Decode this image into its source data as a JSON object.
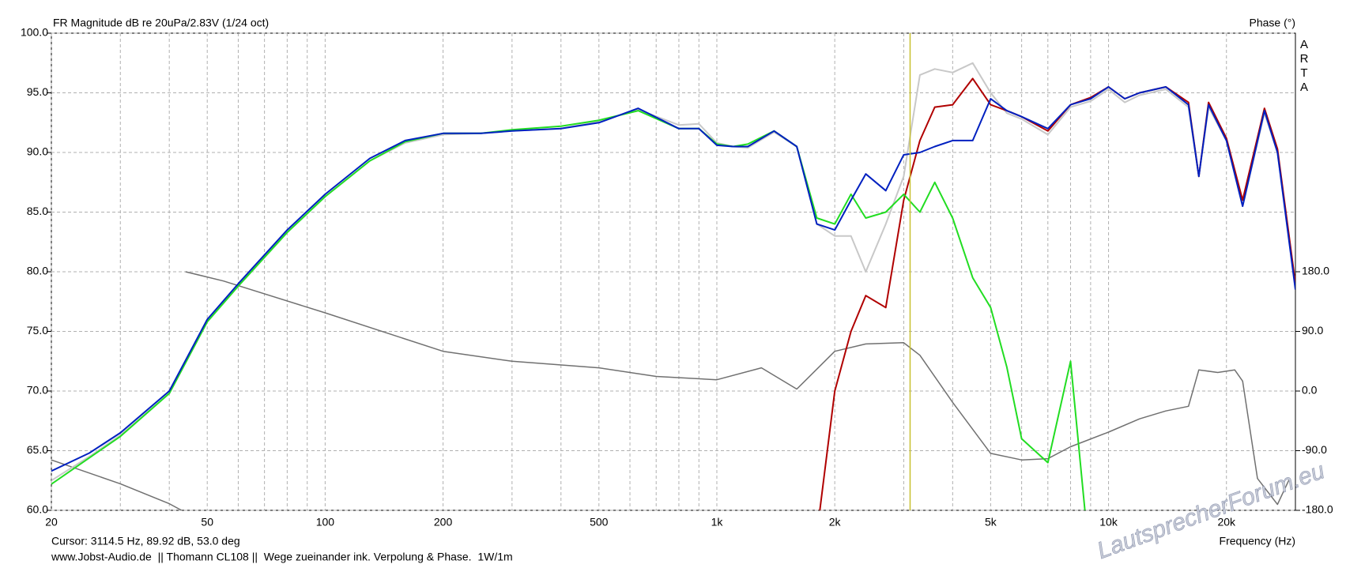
{
  "chart_data": {
    "type": "line",
    "title": "FR Magnitude dB re 20uPa/2.83V (1/24 oct)",
    "y2_label": "Phase (°)",
    "brand": "ARTA",
    "x_label": "Frequency (Hz)",
    "cursor": {
      "text": "Cursor: 3114.5 Hz, 89.92 dB, 53.0 deg",
      "x": 3114.5,
      "color": "#c8c030"
    },
    "footer": "www.Jobst-Audio.de  || Thomann CL108 ||  Wege zueinander ink. Verpolung & Phase.  1W/1m",
    "watermark": "LautsprecherForum.eu",
    "log_x": true,
    "grid": true,
    "xlim": [
      20,
      30000
    ],
    "xticks": [
      20,
      50,
      100,
      200,
      500,
      {
        "value": 1000,
        "label": "1k"
      },
      {
        "value": 2000,
        "label": "2k"
      },
      {
        "value": 5000,
        "label": "5k"
      },
      {
        "value": 10000,
        "label": "10k"
      },
      {
        "value": 20000,
        "label": "20k"
      }
    ],
    "x_minor_ticks": [
      30,
      40,
      60,
      70,
      80,
      90,
      300,
      400,
      600,
      700,
      800,
      900,
      3000,
      4000,
      6000,
      7000,
      8000,
      9000
    ],
    "ylim": [
      60,
      100
    ],
    "yticks": [
      {
        "value": 60,
        "label": "60.0"
      },
      {
        "value": 65,
        "label": "65.0"
      },
      {
        "value": 70,
        "label": "70.0"
      },
      {
        "value": 75,
        "label": "75.0"
      },
      {
        "value": 80,
        "label": "80.0"
      },
      {
        "value": 85,
        "label": "85.0"
      },
      {
        "value": 90,
        "label": "90.0"
      },
      {
        "value": 95,
        "label": "95.0"
      },
      {
        "value": 100,
        "label": "100.0"
      }
    ],
    "y2lim": [
      -180,
      540
    ],
    "y2ticks": [
      {
        "value": -180,
        "label": "-180.0"
      },
      {
        "value": -90,
        "label": "-90.0"
      },
      {
        "value": 0,
        "label": "0.0"
      },
      {
        "value": 90,
        "label": "90.0"
      },
      {
        "value": 180,
        "label": "180.0"
      }
    ],
    "x": [
      20,
      25,
      30,
      40,
      50,
      60,
      80,
      100,
      130,
      160,
      200,
      250,
      300,
      400,
      500,
      630,
      800,
      900,
      1000,
      1100,
      1200,
      1400,
      1600,
      1800,
      2000,
      2200,
      2400,
      2700,
      3000,
      3300,
      3600,
      4000,
      4500,
      5000,
      5500,
      6000,
      7000,
      8000,
      9000,
      10000,
      11000,
      12000,
      14000,
      16000,
      17000,
      18000,
      20000,
      22000,
      25000,
      27000,
      30000
    ],
    "series": [
      {
        "color": "#c8c8c8",
        "values": [
          62.5,
          64.5,
          66.3,
          69.8,
          75.8,
          78.8,
          83.3,
          86.3,
          89.3,
          90.8,
          91.5,
          91.6,
          91.8,
          92,
          92.6,
          93.6,
          92.3,
          92.4,
          90.8,
          90.5,
          90.4,
          91.7,
          90.5,
          84,
          83,
          83,
          80,
          84,
          88,
          96.5,
          97,
          96.7,
          97.5,
          95,
          93.3,
          92.8,
          91.5,
          93.8,
          94.3,
          95.3,
          94.2,
          94.8,
          95.3,
          93.8,
          88,
          93.8,
          91,
          85.5,
          93.3,
          90,
          79
        ]
      },
      {
        "color": "#b00000",
        "values": [
          null,
          null,
          null,
          null,
          null,
          null,
          null,
          null,
          null,
          null,
          null,
          null,
          null,
          null,
          null,
          null,
          null,
          null,
          null,
          null,
          null,
          null,
          null,
          58,
          70,
          75,
          78,
          77,
          86,
          91,
          93.8,
          94,
          96.2,
          94,
          93.5,
          93,
          91.8,
          94,
          94.6,
          95.5,
          94.5,
          95,
          95.5,
          94.2,
          88,
          94.2,
          91.2,
          86,
          93.7,
          90.3,
          79
        ]
      },
      {
        "color": "#22dd22",
        "values": [
          62.2,
          64.4,
          66.2,
          69.8,
          75.8,
          78.8,
          83.3,
          86.3,
          89.3,
          90.9,
          91.6,
          91.6,
          91.9,
          92.2,
          92.7,
          93.5,
          92,
          92,
          90.7,
          90.5,
          90.7,
          91.8,
          90.5,
          84.5,
          84,
          86.5,
          84.5,
          85,
          86.5,
          85,
          87.5,
          84.5,
          79.5,
          77,
          72,
          66,
          64,
          72.5,
          55,
          null,
          null,
          null,
          null,
          null,
          null,
          null,
          null,
          null,
          null,
          null,
          null
        ]
      },
      {
        "color": "#0020c0",
        "values": [
          63.3,
          64.8,
          66.5,
          70,
          76,
          79,
          83.5,
          86.5,
          89.5,
          91,
          91.6,
          91.6,
          91.8,
          92,
          92.5,
          93.7,
          92,
          92,
          90.6,
          90.5,
          90.5,
          91.8,
          90.5,
          84,
          83.5,
          86,
          88.2,
          86.8,
          89.8,
          90,
          90.5,
          91,
          91,
          94.5,
          93.5,
          93,
          92,
          94,
          94.5,
          95.5,
          94.5,
          95,
          95.5,
          94,
          88,
          94,
          91,
          85.5,
          93.5,
          90,
          78.5
        ]
      },
      {
        "color": "#707070",
        "axis": "y2",
        "x": [
          20,
          30,
          40,
          43,
          44,
          44,
          55,
          100,
          200,
          300,
          500,
          700,
          1000,
          1300,
          1600,
          2000,
          2400,
          3000,
          3300,
          4000,
          5000,
          6000,
          7000,
          8000,
          10000,
          12000,
          14000,
          16000,
          17000,
          19000,
          21000,
          22000,
          24000,
          27000,
          29000
        ],
        "values": [
          -104,
          -140,
          -170,
          -180,
          null,
          180,
          166,
          118,
          60,
          45,
          35,
          22,
          17,
          35,
          3,
          60,
          71,
          73,
          54,
          -17,
          -94,
          -104,
          -102,
          -84,
          -62,
          -42,
          -30,
          -23,
          32,
          28,
          32,
          15,
          -132,
          -171,
          -132
        ]
      }
    ]
  }
}
